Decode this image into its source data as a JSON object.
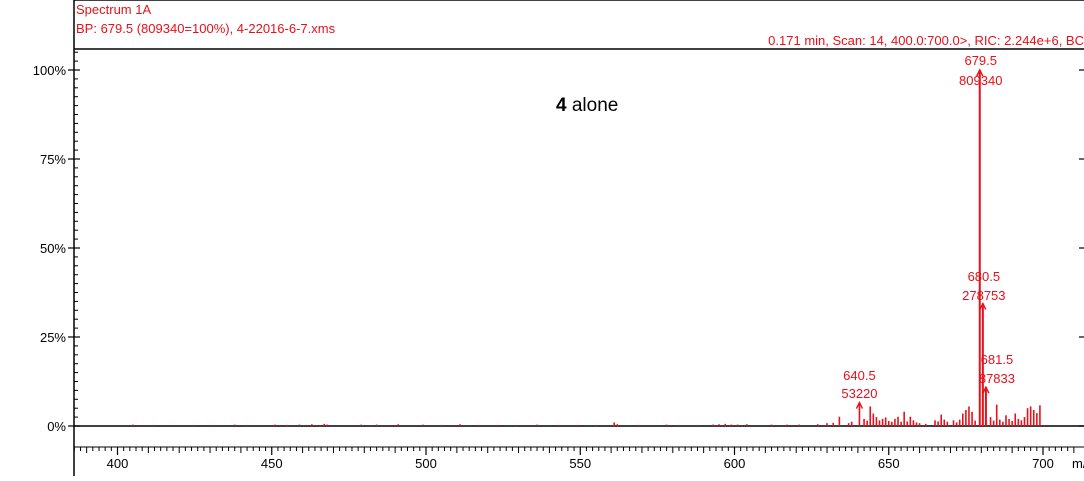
{
  "header": {
    "title": "Spectrum 1A",
    "subtitle": "BP: 679.5 (809340=100%), 4-22016-6-7.xms",
    "scan_info": "0.171 min, Scan: 14, 400.0:700.0>, RIC: 2.244e+6, BC"
  },
  "annotation": {
    "compound": "4",
    "text": " alone"
  },
  "colors": {
    "peaks": "#e8101a",
    "axis": "#000000",
    "text_header": "#e8101a"
  },
  "chart_data": {
    "type": "bar",
    "title": "Spectrum 1A",
    "xlabel": "m/z",
    "ylabel": "",
    "xlim": [
      385,
      710
    ],
    "ylim": [
      0,
      105
    ],
    "x_ticks": [
      400,
      450,
      500,
      550,
      600,
      650,
      700
    ],
    "x_tick_labels": [
      "400",
      "450",
      "500",
      "550",
      "600",
      "650",
      "700"
    ],
    "y_ticks": [
      0,
      25,
      50,
      75,
      100
    ],
    "y_tick_labels": [
      "0%",
      "25%",
      "50%",
      "75%",
      "100%"
    ],
    "peaks": [
      {
        "mz": 405,
        "rel": 0.4
      },
      {
        "mz": 412,
        "rel": 0.3
      },
      {
        "mz": 418,
        "rel": 0.3
      },
      {
        "mz": 425,
        "rel": 0.3
      },
      {
        "mz": 431,
        "rel": 0.3
      },
      {
        "mz": 438,
        "rel": 0.4
      },
      {
        "mz": 442,
        "rel": 0.3
      },
      {
        "mz": 451,
        "rel": 0.4
      },
      {
        "mz": 455,
        "rel": 0.3
      },
      {
        "mz": 459,
        "rel": 0.4
      },
      {
        "mz": 463,
        "rel": 0.5
      },
      {
        "mz": 467,
        "rel": 0.6
      },
      {
        "mz": 468,
        "rel": 0.4
      },
      {
        "mz": 479,
        "rel": 0.4
      },
      {
        "mz": 484,
        "rel": 0.4
      },
      {
        "mz": 491,
        "rel": 0.5
      },
      {
        "mz": 499,
        "rel": 0.4
      },
      {
        "mz": 505,
        "rel": 0.3
      },
      {
        "mz": 511,
        "rel": 0.5
      },
      {
        "mz": 517,
        "rel": 0.3
      },
      {
        "mz": 523,
        "rel": 0.3
      },
      {
        "mz": 529,
        "rel": 0.3
      },
      {
        "mz": 536,
        "rel": 0.4
      },
      {
        "mz": 543,
        "rel": 0.3
      },
      {
        "mz": 549,
        "rel": 0.3
      },
      {
        "mz": 555,
        "rel": 0.3
      },
      {
        "mz": 561,
        "rel": 1.0
      },
      {
        "mz": 562,
        "rel": 0.5
      },
      {
        "mz": 569,
        "rel": 0.3
      },
      {
        "mz": 578,
        "rel": 0.4
      },
      {
        "mz": 582,
        "rel": 0.3
      },
      {
        "mz": 588,
        "rel": 0.3
      },
      {
        "mz": 593,
        "rel": 0.4
      },
      {
        "mz": 595,
        "rel": 0.5
      },
      {
        "mz": 597,
        "rel": 0.6
      },
      {
        "mz": 599,
        "rel": 0.4
      },
      {
        "mz": 601,
        "rel": 0.4
      },
      {
        "mz": 604,
        "rel": 0.5
      },
      {
        "mz": 612,
        "rel": 0.4
      },
      {
        "mz": 617,
        "rel": 0.4
      },
      {
        "mz": 621,
        "rel": 0.4
      },
      {
        "mz": 627,
        "rel": 0.5
      },
      {
        "mz": 630,
        "rel": 0.8
      },
      {
        "mz": 632,
        "rel": 0.9
      },
      {
        "mz": 634,
        "rel": 2.6
      },
      {
        "mz": 637,
        "rel": 0.8
      },
      {
        "mz": 638,
        "rel": 1.2
      },
      {
        "mz": 640.5,
        "rel": 6.6
      },
      {
        "mz": 642,
        "rel": 2.0
      },
      {
        "mz": 643,
        "rel": 1.5
      },
      {
        "mz": 644,
        "rel": 5.5
      },
      {
        "mz": 645,
        "rel": 3.5
      },
      {
        "mz": 646,
        "rel": 2.5
      },
      {
        "mz": 647,
        "rel": 1.6
      },
      {
        "mz": 648,
        "rel": 2.0
      },
      {
        "mz": 649,
        "rel": 2.4
      },
      {
        "mz": 650,
        "rel": 1.4
      },
      {
        "mz": 651,
        "rel": 1.2
      },
      {
        "mz": 652,
        "rel": 2.0
      },
      {
        "mz": 653,
        "rel": 2.6
      },
      {
        "mz": 654,
        "rel": 1.2
      },
      {
        "mz": 655,
        "rel": 4.0
      },
      {
        "mz": 656,
        "rel": 1.3
      },
      {
        "mz": 657,
        "rel": 2.6
      },
      {
        "mz": 658,
        "rel": 1.6
      },
      {
        "mz": 659,
        "rel": 1.0
      },
      {
        "mz": 660,
        "rel": 0.8
      },
      {
        "mz": 662,
        "rel": 0.6
      },
      {
        "mz": 665,
        "rel": 1.6
      },
      {
        "mz": 666,
        "rel": 1.3
      },
      {
        "mz": 667,
        "rel": 3.2
      },
      {
        "mz": 668,
        "rel": 1.8
      },
      {
        "mz": 669,
        "rel": 1.2
      },
      {
        "mz": 671,
        "rel": 1.6
      },
      {
        "mz": 672,
        "rel": 1.0
      },
      {
        "mz": 673,
        "rel": 1.8
      },
      {
        "mz": 674,
        "rel": 3.5
      },
      {
        "mz": 675,
        "rel": 4.5
      },
      {
        "mz": 676,
        "rel": 5.5
      },
      {
        "mz": 677,
        "rel": 4.0
      },
      {
        "mz": 678,
        "rel": 1.5
      },
      {
        "mz": 679.5,
        "rel": 100
      },
      {
        "mz": 680.5,
        "rel": 34.4
      },
      {
        "mz": 681.5,
        "rel": 10.9
      },
      {
        "mz": 683,
        "rel": 2.5
      },
      {
        "mz": 684,
        "rel": 1.5
      },
      {
        "mz": 685,
        "rel": 6.0
      },
      {
        "mz": 686,
        "rel": 1.8
      },
      {
        "mz": 687,
        "rel": 1.2
      },
      {
        "mz": 688,
        "rel": 3.0
      },
      {
        "mz": 689,
        "rel": 2.0
      },
      {
        "mz": 690,
        "rel": 1.4
      },
      {
        "mz": 691,
        "rel": 3.5
      },
      {
        "mz": 692,
        "rel": 2.0
      },
      {
        "mz": 693,
        "rel": 1.6
      },
      {
        "mz": 694,
        "rel": 2.5
      },
      {
        "mz": 695,
        "rel": 5.0
      },
      {
        "mz": 696,
        "rel": 5.5
      },
      {
        "mz": 697,
        "rel": 4.5
      },
      {
        "mz": 698,
        "rel": 3.6
      },
      {
        "mz": 699,
        "rel": 5.8
      }
    ],
    "labeled_peaks": [
      {
        "mz": 679.5,
        "mz_label": "679.5",
        "intensity_label": "809340",
        "rel": 100
      },
      {
        "mz": 680.5,
        "mz_label": "680.5",
        "intensity_label": "278753",
        "rel": 34.4
      },
      {
        "mz": 681.5,
        "mz_label": "681.5",
        "intensity_label": "87833",
        "rel": 10.9
      },
      {
        "mz": 640.5,
        "mz_label": "640.5",
        "intensity_label": "53220",
        "rel": 6.6
      }
    ]
  }
}
